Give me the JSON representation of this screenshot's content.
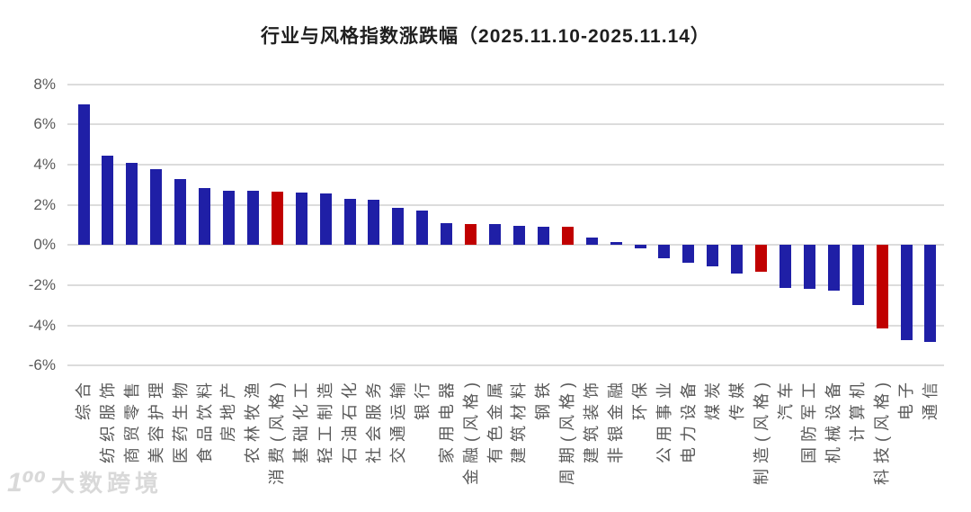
{
  "title": "行业与风格指数涨跌幅（2025.11.10-2025.11.14）",
  "watermark": {
    "logo": "1⁰⁰",
    "text": "大数跨境"
  },
  "chart_data": {
    "type": "bar",
    "title": "行业与风格指数涨跌幅（2025.11.10-2025.11.14）",
    "categories": [
      "综合",
      "纺织服饰",
      "商贸零售",
      "美容护理",
      "医药生物",
      "食品饮料",
      "房地产",
      "农林牧渔",
      "消费(风格)",
      "基础化工",
      "轻工制造",
      "石油石化",
      "社会服务",
      "交通运输",
      "银行",
      "家用电器",
      "金融(风格)",
      "有色金属",
      "建筑材料",
      "钢铁",
      "周期(风格)",
      "建筑装饰",
      "非银金融",
      "环保",
      "公用事业",
      "电力设备",
      "煤炭",
      "传媒",
      "制造(风格)",
      "汽车",
      "国防军工",
      "机械设备",
      "计算机",
      "科技(风格)",
      "电子",
      "通信"
    ],
    "values": [
      7.0,
      4.45,
      4.1,
      3.75,
      3.3,
      2.85,
      2.7,
      2.7,
      2.65,
      2.6,
      2.55,
      2.3,
      2.25,
      1.85,
      1.7,
      1.1,
      1.05,
      1.05,
      0.95,
      0.9,
      0.9,
      0.35,
      0.15,
      -0.15,
      -0.65,
      -0.9,
      -1.05,
      -1.4,
      -1.35,
      -2.15,
      -2.2,
      -2.25,
      -3.0,
      -4.15,
      -4.75,
      -4.8
    ],
    "bar_colors": [
      "blue",
      "blue",
      "blue",
      "blue",
      "blue",
      "blue",
      "blue",
      "blue",
      "red",
      "blue",
      "blue",
      "blue",
      "blue",
      "blue",
      "blue",
      "blue",
      "red",
      "blue",
      "blue",
      "blue",
      "red",
      "blue",
      "blue",
      "blue",
      "blue",
      "blue",
      "blue",
      "blue",
      "red",
      "blue",
      "blue",
      "blue",
      "blue",
      "red",
      "blue",
      "blue"
    ],
    "palette": {
      "blue": "#1f1fa6",
      "red": "#c00000",
      "grid": "#dcdcdc",
      "tick_text": "#595959"
    },
    "yticks": [
      "8%",
      "6%",
      "4%",
      "2%",
      "0%",
      "-2%",
      "-4%",
      "-6%"
    ],
    "ylim": [
      -6,
      8
    ],
    "xlabel": "",
    "ylabel": "",
    "grid": true,
    "legend_position": "none"
  }
}
